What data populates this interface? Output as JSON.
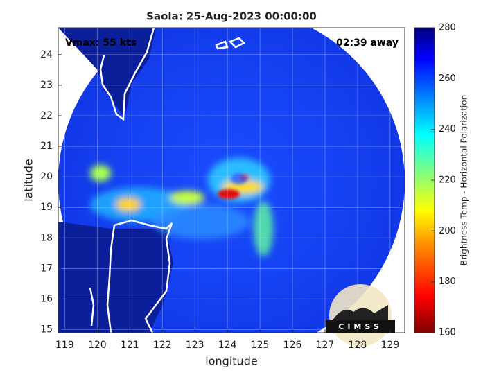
{
  "title": "Saola: 25-Aug-2023 00:00:00",
  "annotations": {
    "vmax": "Vmax: 55 kts",
    "time_away": "02:39 away"
  },
  "axes": {
    "xlabel": "longitude",
    "ylabel": "latitude",
    "xlim": [
      118.8,
      129.45
    ],
    "xticks": [
      119,
      120,
      121,
      122,
      123,
      124,
      125,
      126,
      127,
      128,
      129
    ],
    "ylim": [
      14.9,
      24.88
    ],
    "yticks": [
      15,
      16,
      17,
      18,
      19,
      20,
      21,
      22,
      23,
      24
    ],
    "grid": true
  },
  "colorbar": {
    "label": "Brightness Temp - Horizontal Polarization",
    "lim": [
      160,
      280
    ],
    "ticks": [
      160,
      180,
      200,
      220,
      240,
      260,
      280
    ]
  },
  "logo": "CIMSS"
}
